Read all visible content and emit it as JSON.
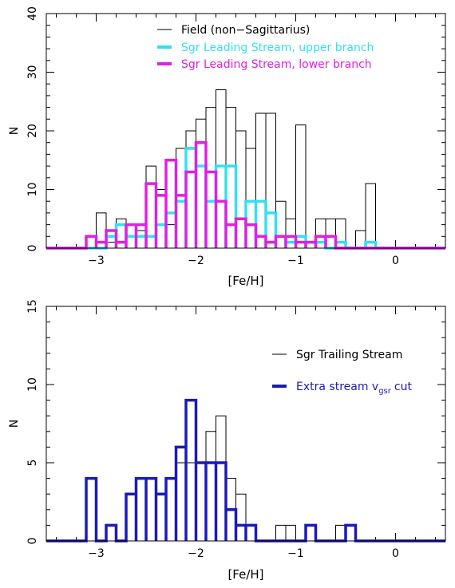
{
  "chart_data": [
    {
      "type": "histogram",
      "xlabel": "[Fe/H]",
      "ylabel": "N",
      "xlim": [
        -3.5,
        0.5
      ],
      "ylim": [
        0,
        40
      ],
      "xticks": [
        -3,
        -2,
        -1,
        0
      ],
      "xtick_labels": [
        "−3",
        "−2",
        "−1",
        "0"
      ],
      "yticks": [
        0,
        10,
        20,
        30,
        40
      ],
      "ytick_labels": [
        "0",
        "10",
        "20",
        "30",
        "40"
      ],
      "legend_position": "top-center",
      "bin_width": 0.1,
      "series": [
        {
          "name": "Field (non−Sagittarius)",
          "color": "#000000",
          "style": "thin",
          "bins_start": -3.1,
          "counts": [
            0,
            6,
            1,
            5,
            0,
            3,
            14,
            10,
            4,
            17,
            20,
            22,
            24,
            27,
            24,
            20,
            17,
            23,
            23,
            8,
            5,
            21,
            0,
            5,
            5,
            5,
            0,
            3,
            11,
            0
          ]
        },
        {
          "name": "Sgr Leading Stream, upper branch",
          "color": "#33e0f0",
          "style": "thick",
          "bins_start": -3.1,
          "counts": [
            0,
            0,
            2,
            4,
            2,
            2,
            2,
            4,
            6,
            8,
            17,
            14,
            8,
            14,
            14,
            5,
            8,
            8,
            6,
            2,
            1,
            2,
            1,
            1,
            0,
            1,
            0,
            0,
            1,
            0
          ]
        },
        {
          "name": "Sgr Leading Stream, lower branch",
          "color": "#e020e0",
          "style": "thick",
          "bins_start": -3.1,
          "counts": [
            2,
            1,
            3,
            1,
            4,
            4,
            11,
            9,
            15,
            9,
            13,
            18,
            13,
            8,
            4,
            5,
            4,
            2,
            1,
            2,
            2,
            1,
            1,
            2,
            2,
            0,
            0,
            0,
            0,
            0
          ]
        }
      ]
    },
    {
      "type": "histogram",
      "xlabel": "[Fe/H]",
      "ylabel": "N",
      "xlim": [
        -3.5,
        0.5
      ],
      "ylim": [
        0,
        15
      ],
      "xticks": [
        -3,
        -2,
        -1,
        0
      ],
      "xtick_labels": [
        "−3",
        "−2",
        "−1",
        "0"
      ],
      "yticks": [
        0,
        5,
        10,
        15
      ],
      "ytick_labels": [
        "0",
        "5",
        "10",
        "15"
      ],
      "legend_position": "right",
      "bin_width": 0.1,
      "series": [
        {
          "name": "Sgr Trailing Stream",
          "color": "#000000",
          "style": "thin",
          "bins_start": -3.1,
          "counts": [
            4,
            0,
            1,
            0,
            3,
            4,
            4,
            3,
            4,
            5,
            5,
            5,
            7,
            8,
            4,
            3,
            1,
            0,
            0,
            1,
            1,
            0,
            1,
            0,
            0,
            1,
            1,
            0,
            0,
            0
          ]
        },
        {
          "name": "Extra stream v",
          "name_sub": "gsr",
          "name_tail": "cut",
          "color": "#1a1ab8",
          "style": "thick",
          "bins_start": -3.1,
          "counts": [
            4,
            0,
            1,
            0,
            3,
            4,
            4,
            3,
            4,
            6,
            9,
            5,
            5,
            5,
            2,
            1,
            1,
            0,
            0,
            0,
            0,
            0,
            1,
            0,
            0,
            0,
            1,
            0,
            0,
            0
          ]
        }
      ]
    }
  ]
}
